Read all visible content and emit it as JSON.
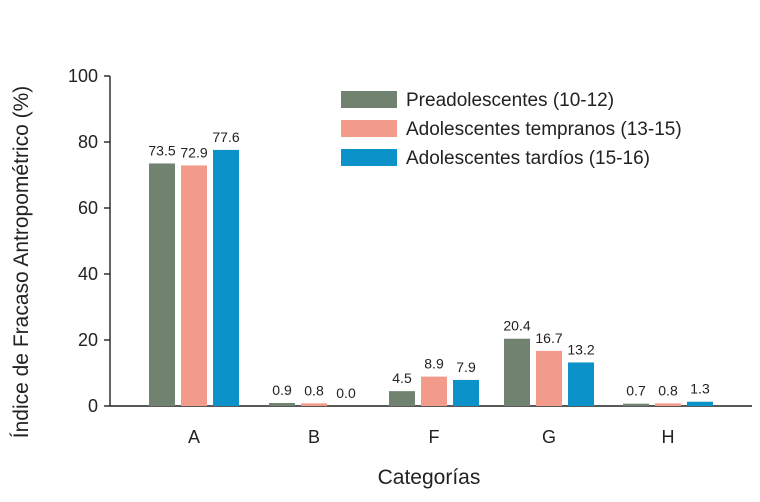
{
  "chart_data": {
    "type": "bar",
    "categories": [
      "A",
      "B",
      "F",
      "G",
      "H"
    ],
    "series": [
      {
        "name": "Preadolescentes (10-12)",
        "color": "#718370",
        "values": [
          73.5,
          0.9,
          4.5,
          20.4,
          0.7
        ],
        "labels": [
          "73.5",
          "0.9",
          "4.5",
          "20.4",
          "0.7"
        ]
      },
      {
        "name": "Adolescentes tempranos (13-15)",
        "color": "#f39b8b",
        "values": [
          72.9,
          0.8,
          8.9,
          16.7,
          0.8
        ],
        "labels": [
          "72.9",
          "0.8",
          "8.9",
          "16.7",
          "0.8"
        ]
      },
      {
        "name": "Adolescentes tardíos (15-16)",
        "color": "#0b93c9",
        "values": [
          77.6,
          0.0,
          7.9,
          13.2,
          1.3
        ],
        "labels": [
          "77.6",
          "0.0",
          "7.9",
          "13.2",
          "1.3"
        ]
      }
    ],
    "xlabel": "Categorías",
    "ylabel": "Índice de Fracaso Antropométrico (%)",
    "ylim": [
      0,
      100
    ],
    "yticks": [
      0,
      20,
      40,
      60,
      80,
      100
    ],
    "legend_position": "top-right",
    "grid": false
  }
}
